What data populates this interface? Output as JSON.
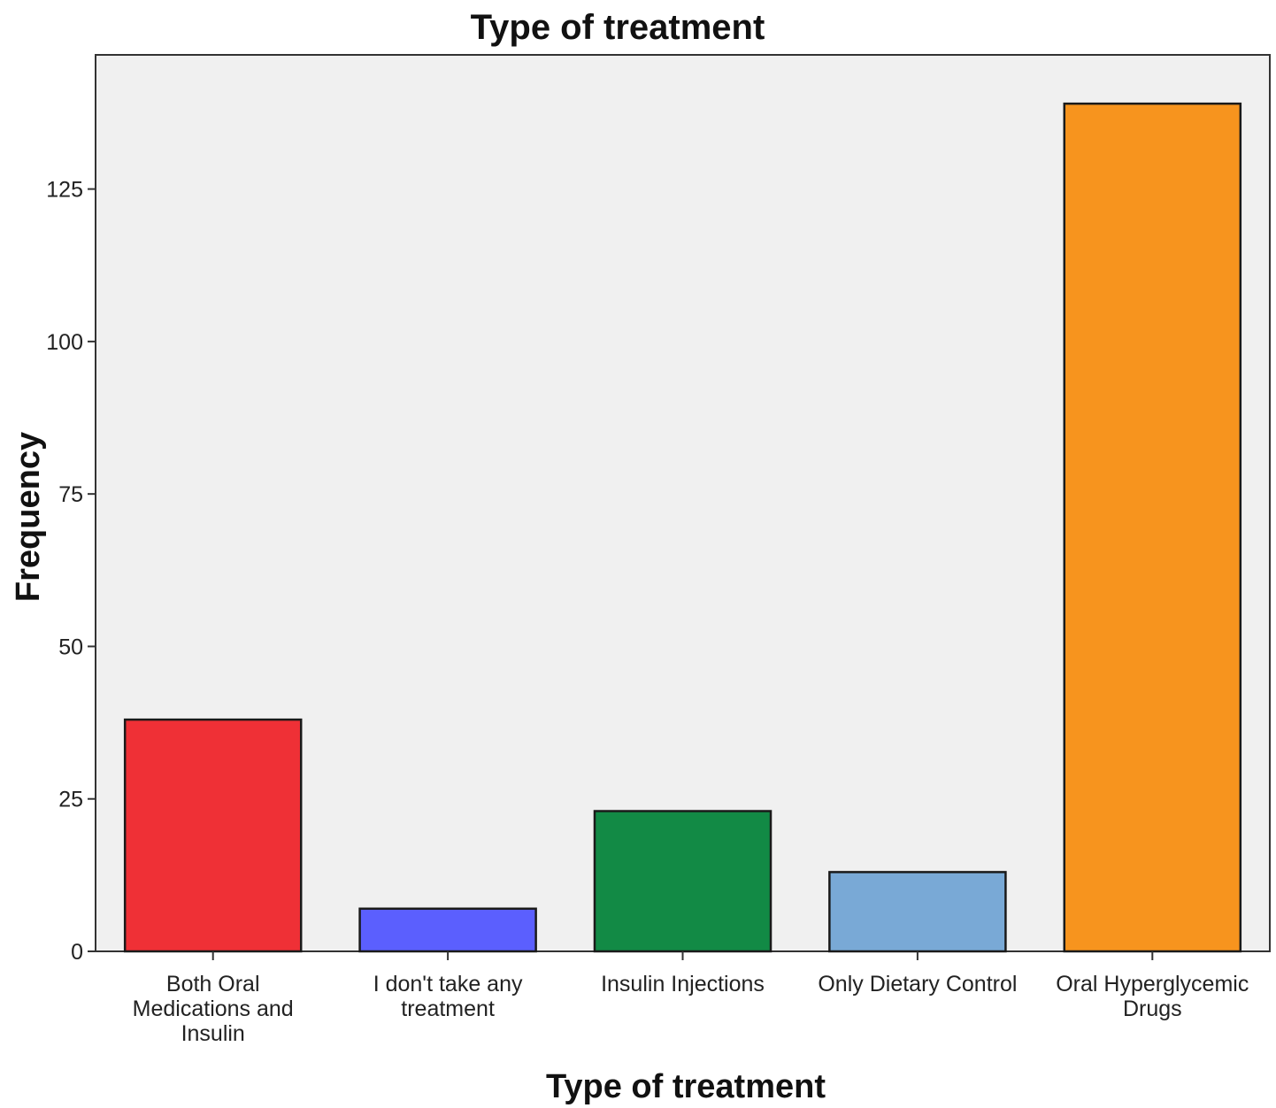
{
  "chart_data": {
    "type": "bar",
    "title": "Type of treatment",
    "xlabel": "Type of treatment",
    "ylabel": "Frequency",
    "ylim": [
      0,
      147
    ],
    "yticks": [
      "0",
      "25",
      "50",
      "75",
      "100",
      "125"
    ],
    "grid": false,
    "legend": "none",
    "plot_background": "#f0f0f0",
    "bar_outline": "#1a1a1a",
    "categories": [
      "Both Oral Medications and Insulin",
      "I don't take any treatment",
      "Insulin Injections",
      "Only Dietary Control",
      "Oral Hyperglycemic Drugs"
    ],
    "category_lines": [
      [
        "Both Oral",
        "Medications and",
        "Insulin"
      ],
      [
        "I don't take any",
        "treatment"
      ],
      [
        "Insulin Injections"
      ],
      [
        "Only Dietary Control"
      ],
      [
        "Oral Hyperglycemic",
        "Drugs"
      ]
    ],
    "values": [
      38,
      7,
      23,
      13,
      139
    ],
    "colors": [
      "#ef3036",
      "#5b5ffe",
      "#128a45",
      "#79a9d6",
      "#f7941e"
    ]
  }
}
